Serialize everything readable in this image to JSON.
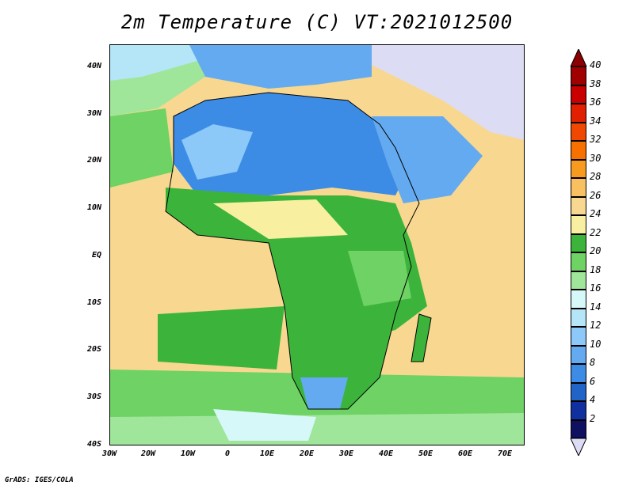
{
  "title": "2m Temperature (C) VT:2021012500",
  "credit": "GrADS: IGES/COLA",
  "map": {
    "region": "Africa and surrounding waters",
    "projection": "lat-lon",
    "lon_range": [
      "30W",
      "75E"
    ],
    "lat_range": [
      "40S",
      "45N"
    ],
    "x_ticks": [
      "30W",
      "20W",
      "10W",
      "0",
      "10E",
      "20E",
      "30E",
      "40E",
      "50E",
      "60E",
      "70E"
    ],
    "y_ticks": [
      "40N",
      "30N",
      "20N",
      "10N",
      "EQ",
      "10S",
      "20S",
      "30S",
      "40S"
    ]
  },
  "colorbar": {
    "labels": [
      "40",
      "38",
      "36",
      "34",
      "32",
      "30",
      "28",
      "26",
      "24",
      "22",
      "20",
      "18",
      "16",
      "14",
      "12",
      "10",
      "8",
      "6",
      "4",
      "2"
    ],
    "colors": [
      "#a00000",
      "#c80000",
      "#e02000",
      "#f04800",
      "#f87000",
      "#f89a20",
      "#f8c060",
      "#f8d890",
      "#f8f0a0",
      "#3cb43c",
      "#6ed264",
      "#a0e69a",
      "#d6f8f8",
      "#b4e6f8",
      "#8cc8f8",
      "#64aaf0",
      "#3c8ce6",
      "#2064c8",
      "#1030a0",
      "#101060"
    ],
    "top_arrow_color": "#8b0000",
    "bottom_arrow_color": "#dcdcf5"
  }
}
